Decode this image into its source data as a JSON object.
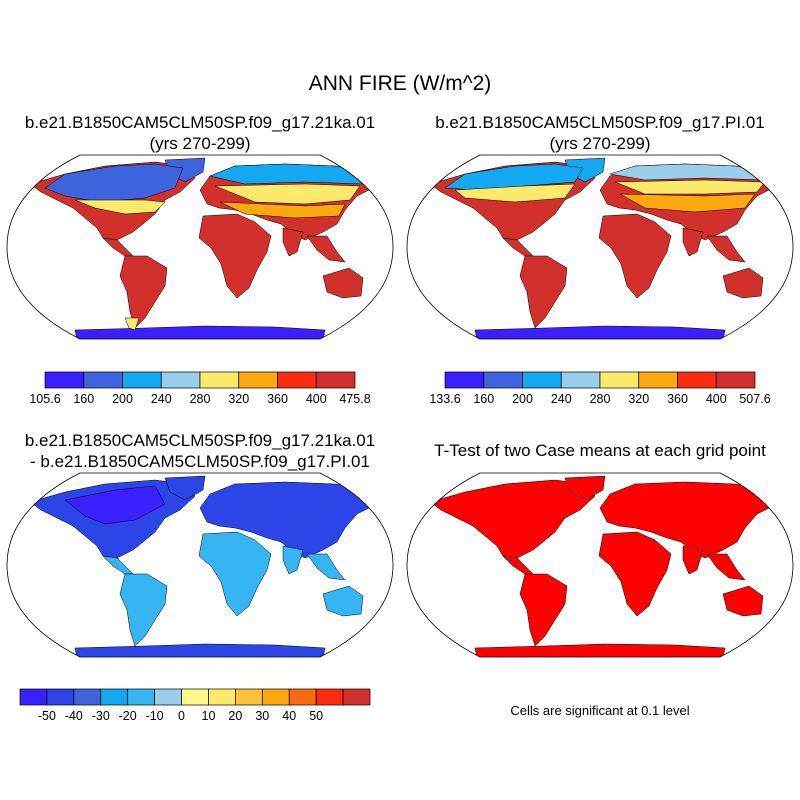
{
  "title": "ANN FIRE (W/m^2)",
  "panels": [
    {
      "title_line1": "b.e21.B1850CAM5CLM50SP.f09_g17.21ka.01",
      "title_line2": "(yrs 270-299)",
      "colorbar": {
        "colors": [
          "#3a1fff",
          "#3d64de",
          "#12a8f2",
          "#99ceec",
          "#fde96a",
          "#fca80f",
          "#fb2b0f",
          "#d1302c"
        ],
        "labels": [
          "105.6",
          "160",
          "200",
          "240",
          "280",
          "320",
          "360",
          "400",
          "475.8"
        ]
      },
      "colors": {
        "cold": "#3d64de",
        "polar": "#3a1fff",
        "subpolar": "#12a8f2",
        "mid": "#fca80f",
        "warm": "#fde96a",
        "tropics": "#d1302c"
      }
    },
    {
      "title_line1": "b.e21.B1850CAM5CLM50SP.f09_g17.PI.01",
      "title_line2": "(yrs 270-299)",
      "colorbar": {
        "colors": [
          "#3a1fff",
          "#3d64de",
          "#12a8f2",
          "#99ceec",
          "#fde96a",
          "#fca80f",
          "#fb2b0f",
          "#d1302c"
        ],
        "labels": [
          "133.6",
          "160",
          "200",
          "240",
          "280",
          "320",
          "360",
          "400",
          "507.6"
        ]
      },
      "colors": {
        "cold": "#12a8f2",
        "polar": "#3a1fff",
        "subpolar": "#99ceec",
        "mid": "#fca80f",
        "warm": "#fde96a",
        "tropics": "#d1302c"
      }
    },
    {
      "title_line1": "b.e21.B1850CAM5CLM50SP.f09_g17.21ka.01",
      "title_line2": "- b.e21.B1850CAM5CLM50SP.f09_g17.PI.01",
      "colorbar": {
        "colors": [
          "#3a1fff",
          "#2c45e8",
          "#3d64de",
          "#12a8f2",
          "#35b5f2",
          "#99ceec",
          "#fff98a",
          "#fde96a",
          "#fcc23a",
          "#fca80f",
          "#fb6a0f",
          "#fb2b0f",
          "#d1302c"
        ],
        "labels": [
          "-50",
          "-40",
          "-30",
          "-20",
          "-10",
          "0",
          "10",
          "20",
          "30",
          "40",
          "50"
        ]
      },
      "colors": {
        "cold": "#2c45e8",
        "polar": "#3a1fff",
        "mid": "#35b5f2"
      }
    },
    {
      "title": "T-Test of two Case means at each grid point",
      "note": "Cells are significant at 0.1 level",
      "colors": {
        "land": "#ff0000"
      }
    }
  ]
}
